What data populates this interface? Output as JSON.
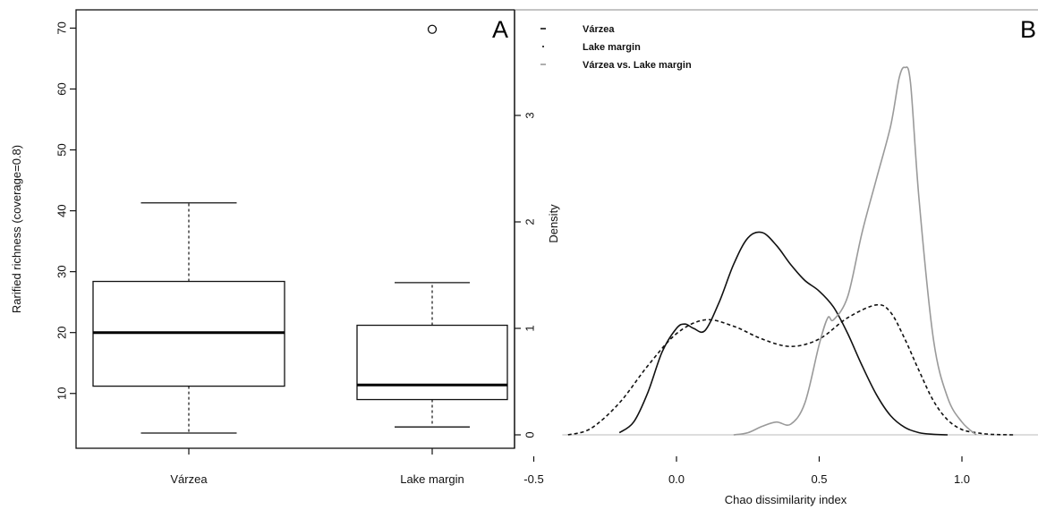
{
  "chart_data": [
    {
      "type": "box",
      "panel_label": "A",
      "ylabel": "Rarified richness (coverage=0.8)",
      "categories": [
        "Várzea",
        "Lake margin"
      ],
      "boxes": [
        {
          "category": "Várzea",
          "whisker_low": 3.5,
          "q1": 11.2,
          "median": 20.0,
          "q3": 28.4,
          "whisker_high": 41.3,
          "outliers": []
        },
        {
          "category": "Lake margin",
          "whisker_low": 4.5,
          "q1": 9.0,
          "median": 11.4,
          "q3": 21.2,
          "whisker_high": 28.2,
          "outliers": [
            69.8
          ]
        }
      ],
      "yticks": [
        "10",
        "20",
        "30",
        "40",
        "50",
        "60",
        "70"
      ],
      "ytick_values": [
        10,
        20,
        30,
        40,
        50,
        60,
        70
      ],
      "ylim": [
        1,
        73
      ],
      "grid": false
    },
    {
      "type": "line",
      "panel_label": "B",
      "xlabel": "Chao dissimilarity index",
      "ylabel": "Density",
      "xticks": [
        "-0.5",
        "0.0",
        "0.5",
        "1.0"
      ],
      "xtick_values": [
        -0.5,
        0.0,
        0.5,
        1.0
      ],
      "yticks": [
        "0",
        "1",
        "2",
        "3"
      ],
      "ytick_values": [
        0,
        1,
        2,
        3
      ],
      "xlim": [
        -0.55,
        1.25
      ],
      "ylim": [
        -0.05,
        3.7
      ],
      "legend_position": "top-left",
      "legend": [
        "Várzea",
        "Lake margin",
        "Várzea vs. Lake margin"
      ],
      "series": [
        {
          "name": "Várzea",
          "style": "solid",
          "color": "#111111",
          "x": [
            -0.2,
            -0.15,
            -0.1,
            -0.05,
            0.0,
            0.03,
            0.06,
            0.1,
            0.15,
            0.2,
            0.25,
            0.3,
            0.35,
            0.4,
            0.45,
            0.5,
            0.55,
            0.6,
            0.65,
            0.7,
            0.75,
            0.8,
            0.85,
            0.9,
            0.95
          ],
          "y": [
            0.02,
            0.12,
            0.4,
            0.78,
            1.0,
            1.04,
            1.0,
            0.98,
            1.25,
            1.6,
            1.85,
            1.9,
            1.78,
            1.6,
            1.45,
            1.35,
            1.2,
            0.95,
            0.65,
            0.38,
            0.18,
            0.07,
            0.02,
            0.005,
            0.0
          ]
        },
        {
          "name": "Lake margin",
          "style": "dashed",
          "color": "#111111",
          "x": [
            -0.38,
            -0.3,
            -0.2,
            -0.1,
            0.0,
            0.1,
            0.2,
            0.3,
            0.4,
            0.5,
            0.6,
            0.7,
            0.75,
            0.8,
            0.85,
            0.9,
            0.95,
            1.0,
            1.05,
            1.1,
            1.18
          ],
          "y": [
            0.0,
            0.06,
            0.3,
            0.65,
            0.95,
            1.08,
            1.02,
            0.9,
            0.83,
            0.9,
            1.1,
            1.22,
            1.15,
            0.9,
            0.6,
            0.32,
            0.14,
            0.05,
            0.02,
            0.005,
            0.0
          ]
        },
        {
          "name": "Várzea vs. Lake margin",
          "style": "solid",
          "color": "#9a9a9a",
          "x": [
            0.2,
            0.25,
            0.3,
            0.35,
            0.4,
            0.45,
            0.5,
            0.53,
            0.55,
            0.6,
            0.65,
            0.7,
            0.75,
            0.78,
            0.8,
            0.82,
            0.85,
            0.9,
            0.95,
            1.0,
            1.05
          ],
          "y": [
            0.0,
            0.02,
            0.08,
            0.12,
            0.1,
            0.3,
            0.85,
            1.1,
            1.08,
            1.3,
            1.9,
            2.4,
            2.9,
            3.35,
            3.45,
            3.3,
            2.2,
            0.9,
            0.35,
            0.12,
            0.0
          ]
        }
      ]
    }
  ]
}
